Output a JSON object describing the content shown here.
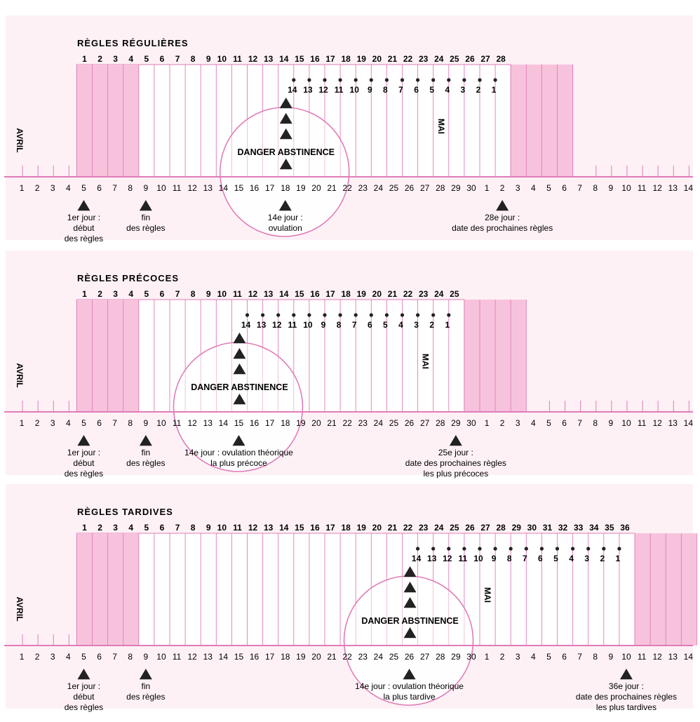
{
  "colors": {
    "pink": "#f7c3dc",
    "line": "#e07cb7",
    "dark": "#222222",
    "panel": "#fdf1f6"
  },
  "bottom_days": [
    "1",
    "2",
    "3",
    "4",
    "5",
    "6",
    "7",
    "8",
    "9",
    "10",
    "11",
    "12",
    "13",
    "14",
    "15",
    "16",
    "17",
    "18",
    "19",
    "20",
    "21",
    "22",
    "23",
    "24",
    "25",
    "26",
    "27",
    "28",
    "29",
    "30",
    "1",
    "2",
    "3",
    "4",
    "5",
    "6",
    "7",
    "8",
    "9",
    "10",
    "11",
    "12",
    "13",
    "14"
  ],
  "month_start": "AVRIL",
  "month_next": "MAI",
  "danger_label": "DANGER  ABSTINENCE",
  "sections": [
    {
      "title": "RÈGLES RÉGULIÈRES",
      "cycle_length": 28,
      "countdown": [
        "14",
        "13",
        "12",
        "11",
        "10",
        "9",
        "8",
        "7",
        "6",
        "5",
        "4",
        "3",
        "2",
        "1"
      ],
      "countdown_start_day": 14,
      "circle_day": 18,
      "mai_day": 28,
      "labels": [
        {
          "day": 5,
          "lines": [
            "1er jour :",
            "début",
            "des règles"
          ]
        },
        {
          "day": 9,
          "lines": [
            "fin",
            "des règles"
          ]
        },
        {
          "day": 18,
          "lines": [
            "14e jour :",
            "ovulation"
          ]
        },
        {
          "day": 32,
          "lines": [
            "28e jour :",
            "date des prochaines règles"
          ]
        }
      ]
    },
    {
      "title": "RÈGLES PRÉCOCES",
      "cycle_length": 25,
      "countdown": [
        "14",
        "13",
        "12",
        "11",
        "10",
        "9",
        "8",
        "7",
        "6",
        "5",
        "4",
        "3",
        "2",
        "1"
      ],
      "countdown_start_day": 11,
      "circle_day": 15,
      "mai_day": 27,
      "labels": [
        {
          "day": 5,
          "lines": [
            "1er jour :",
            "début",
            "des règles"
          ]
        },
        {
          "day": 9,
          "lines": [
            "fin",
            "des règles"
          ]
        },
        {
          "day": 15,
          "lines": [
            "14e jour : ovulation théorique",
            "la plus précoce"
          ]
        },
        {
          "day": 29,
          "lines": [
            "25e jour :",
            "date des prochaines règles",
            "les plus précoces"
          ]
        }
      ]
    },
    {
      "title": "RÈGLES TARDIVES",
      "cycle_length": 36,
      "countdown": [
        "14",
        "13",
        "12",
        "11",
        "10",
        "9",
        "8",
        "7",
        "6",
        "5",
        "4",
        "3",
        "2",
        "1"
      ],
      "countdown_start_day": 22,
      "circle_day": 26,
      "mai_day": 31,
      "labels": [
        {
          "day": 5,
          "lines": [
            "1er jour :",
            "début",
            "des règles"
          ]
        },
        {
          "day": 9,
          "lines": [
            "fin",
            "des règles"
          ]
        },
        {
          "day": 26,
          "lines": [
            "14e jour : ovulation théorique",
            "la plus tardive"
          ]
        },
        {
          "day": 40,
          "lines": [
            "36e jour :",
            "date des prochaines règles",
            "les plus tardives"
          ]
        }
      ]
    }
  ]
}
